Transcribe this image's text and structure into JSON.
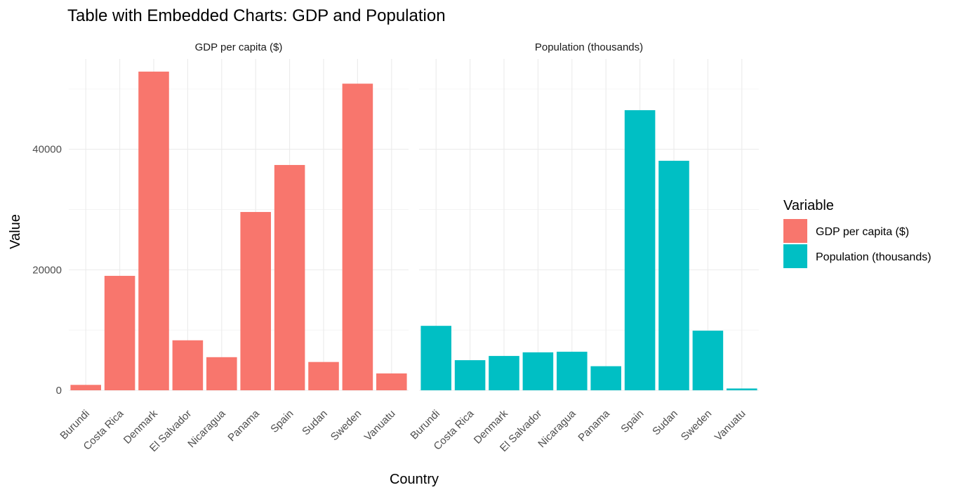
{
  "chart_data": {
    "type": "bar",
    "title": "Table with Embedded Charts: GDP and Population",
    "xlabel": "Country",
    "ylabel": "Value",
    "ylim": [
      0,
      55000
    ],
    "y_ticks": [
      0,
      20000,
      40000
    ],
    "y_tick_labels": [
      "0",
      "20000",
      "40000"
    ],
    "grid": true,
    "categories": [
      "Burundi",
      "Costa Rica",
      "Denmark",
      "El Salvador",
      "Nicaragua",
      "Panama",
      "Spain",
      "Sudan",
      "Sweden",
      "Vanuatu"
    ],
    "panels": [
      {
        "label": "GDP per capita ($)",
        "series_index": 0
      },
      {
        "label": "Population (thousands)",
        "series_index": 1
      }
    ],
    "series": [
      {
        "name": "GDP per capita ($)",
        "color": "#F8766D",
        "values": [
          900,
          19000,
          52900,
          8300,
          5500,
          29600,
          37400,
          4700,
          50900,
          2800
        ]
      },
      {
        "name": "Population (thousands)",
        "color": "#00BFC4",
        "values": [
          10700,
          5000,
          5700,
          6300,
          6400,
          4000,
          46500,
          38100,
          9900,
          300
        ]
      }
    ],
    "legend": {
      "title": "Variable",
      "position": "right",
      "items": [
        "GDP per capita ($)",
        "Population (thousands)"
      ]
    }
  }
}
